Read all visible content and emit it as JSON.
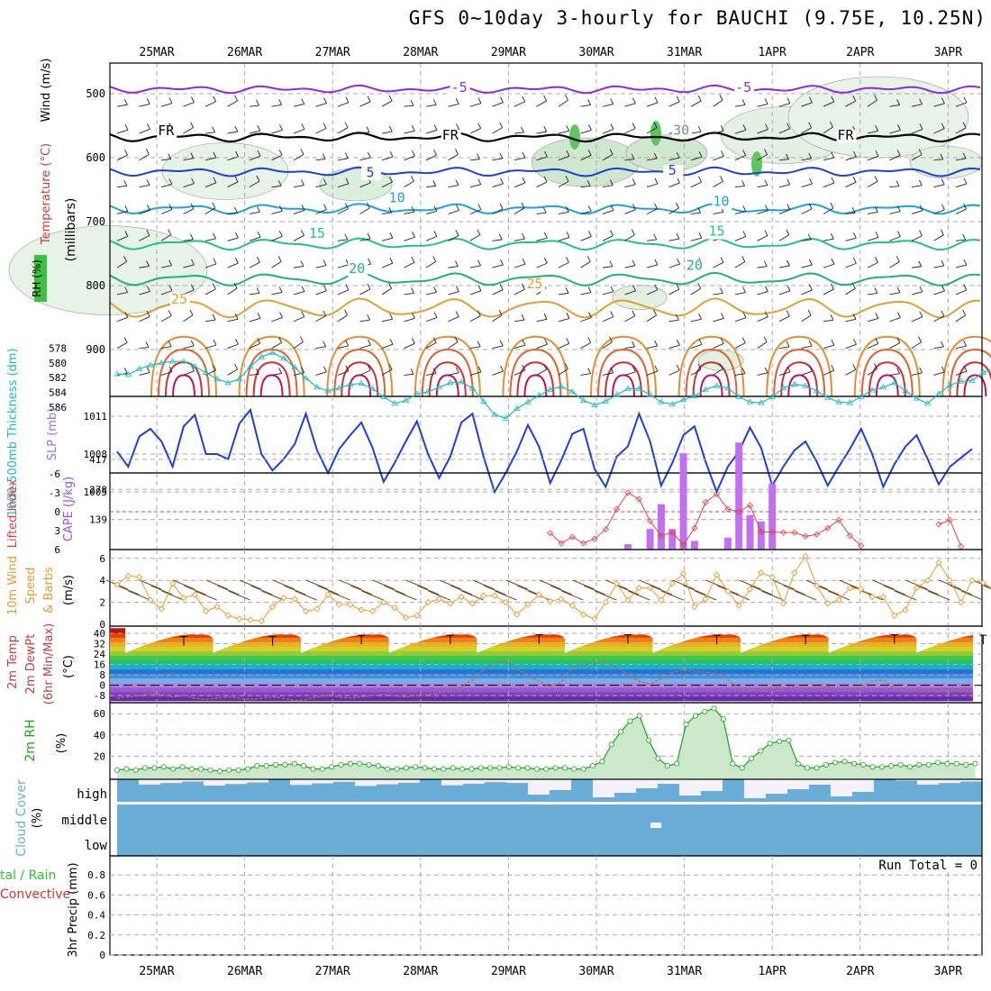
{
  "title": "GFS 0~10day 3-hourly for BAUCHI (9.75E, 10.25N)",
  "dates": [
    "25MAR",
    "26MAR",
    "27MAR",
    "28MAR",
    "29MAR",
    "30MAR",
    "31MAR",
    "1APR",
    "2APR",
    "3APR"
  ],
  "colors": {
    "slp": "#1f3fd0",
    "thickness": "#20b8c0",
    "cape": "#c070f0",
    "lifted_index": "#e04040",
    "wind10": "#e89a30",
    "windbarb": "#7a4a20",
    "dewpoint": "#b07050",
    "rh2m": "#20a020",
    "cloud": "#6aaed8",
    "temp_line": "#000000"
  },
  "panels": {
    "upper": {
      "label_rh": "RH (%)",
      "label_temp": "Temperature (°C)",
      "label_wind": "Wind (m/s)",
      "label_mb": "(millibars)",
      "yticks": [
        "500",
        "600",
        "700",
        "800",
        "900"
      ],
      "isotherm_labels": [
        {
          "text": "-5",
          "color": "#8a2be2",
          "p": 497,
          "t": 3.85
        },
        {
          "text": "-5",
          "color": "#8a2be2",
          "p": 497,
          "t": 7.05
        },
        {
          "text": "FR",
          "color": "#000000",
          "p": 565,
          "t": 0.55
        },
        {
          "text": "FR",
          "color": "#000000",
          "p": 572,
          "t": 3.75
        },
        {
          "text": "FR",
          "color": "#000000",
          "p": 572,
          "t": 8.2
        },
        {
          "text": "30",
          "color": "#888888",
          "p": 564,
          "t": 6.35
        },
        {
          "text": "5",
          "color": "#1f3fd0",
          "p": 630,
          "t": 2.85
        },
        {
          "text": "5",
          "color": "#1f3fd0",
          "p": 627,
          "t": 6.25
        },
        {
          "text": "10",
          "color": "#20a0e0",
          "p": 670,
          "t": 3.15
        },
        {
          "text": "10",
          "color": "#20a0e0",
          "p": 675,
          "t": 6.8
        },
        {
          "text": "15",
          "color": "#20c090",
          "p": 725,
          "t": 2.25
        },
        {
          "text": "15",
          "color": "#20c090",
          "p": 722,
          "t": 6.75
        },
        {
          "text": "20",
          "color": "#20b080",
          "p": 780,
          "t": 2.7
        },
        {
          "text": "20",
          "color": "#20b080",
          "p": 775,
          "t": 6.5
        },
        {
          "text": "25",
          "color": "#e0a030",
          "p": 828,
          "t": 0.7
        },
        {
          "text": "25",
          "color": "#e0a030",
          "p": 804,
          "t": 4.7
        }
      ]
    },
    "slp": {
      "label_thick": "1000-500mb Thickness (dm)",
      "label_slp": "SLP (mb)",
      "yticks_thick": [
        "586",
        "584",
        "582",
        "580",
        "578"
      ],
      "yticks_slp": [
        "1011",
        "1008",
        "1005"
      ]
    },
    "cape": {
      "label_li": "Lifted Index",
      "label_cape": "CAPE (J/kg)",
      "yticks_li": [
        "-6",
        "-3",
        "0",
        "3",
        "6"
      ],
      "yticks_cape": [
        "417",
        "278",
        "139"
      ]
    },
    "wind10": {
      "label": "10m Wind Speed & Barbs",
      "unit": "(m/s)",
      "yticks": [
        "6",
        "4",
        "2",
        "0"
      ]
    },
    "temp2m": {
      "label1": "2m Temp",
      "label2": "2m DewPt",
      "label3": "(6hr Min/Max)",
      "unit": "(°C)",
      "yticks": [
        "40",
        "32",
        "24",
        "16",
        "8",
        "0",
        "-8"
      ]
    },
    "rh2m": {
      "label": "2m RH",
      "unit": "(%)",
      "yticks": [
        "60",
        "40",
        "20"
      ]
    },
    "cloud": {
      "label": "Cloud Cover",
      "unit": "(%)",
      "levels": [
        "high",
        "middle",
        "low"
      ]
    },
    "precip": {
      "label_total": "tal / Rain",
      "label_conv": "Convective",
      "label_axis": "3hr Precip (mm)",
      "run_total": "Run Total = 0",
      "yticks": [
        "0.8",
        "0.6",
        "0.4",
        "0.2",
        "0"
      ]
    }
  },
  "chart_data": {
    "type": "line",
    "x_unit": "days after 24MAR 12Z (3-hourly steps)",
    "t_start": 0,
    "t_end": 9.75,
    "slp": [
      1008.2,
      1007,
      1009.4,
      1010,
      1009,
      1007,
      1010.2,
      1011.1,
      1008,
      1008,
      1007.6,
      1010.4,
      1011.5,
      1008,
      1006.7,
      1007.6,
      1008.8,
      1011.2,
      1008.3,
      1006.5,
      1008.4,
      1009.5,
      1010.5,
      1008.5,
      1005.8,
      1007.3,
      1009,
      1010.6,
      1008,
      1006.1,
      1007.8,
      1010.5,
      1011.2,
      1007.8,
      1005,
      1006.5,
      1008.2,
      1010.3,
      1008.6,
      1005.7,
      1007.5,
      1009.6,
      1010,
      1006.8,
      1005.4,
      1007.8,
      1008.6,
      1011.2,
      1009,
      1005.5,
      1007.3,
      1009.5,
      1010.2,
      1007.4,
      1005,
      1007,
      1008.2,
      1010.1,
      1008.5,
      1005.5,
      1007,
      1008.3,
      1009,
      1007.4,
      1005.5,
      1007,
      1008.4,
      1010,
      1008,
      1005.4,
      1007.2,
      1008.6,
      1009.5,
      1007.6,
      1005.6,
      1007,
      1007.7,
      1008.4
    ],
    "thickness": [
      581.5,
      581.6,
      580.8,
      580.3,
      580,
      579.8,
      579.8,
      580.5,
      581.3,
      582.2,
      582.7,
      582.2,
      580.5,
      579.2,
      578.6,
      579.4,
      580.6,
      582.1,
      583.3,
      583.8,
      583.4,
      582.9,
      582.8,
      583.5,
      584.6,
      585.5,
      585.1,
      584.2,
      583.9,
      583.3,
      582.7,
      582.6,
      583.4,
      585.2,
      587,
      587.5,
      586.2,
      585.3,
      584.4,
      583.6,
      583.2,
      583.9,
      585.1,
      585.7,
      585.2,
      584.3,
      583.5,
      583.5,
      584.3,
      585.3,
      585.6,
      585,
      584.5,
      583.6,
      583.1,
      583.4,
      584.6,
      585.3,
      585.4,
      584.6,
      583.4,
      582.9,
      583.1,
      583.8,
      584.7,
      585.3,
      585.4,
      584.6,
      583.7,
      583.3,
      582.7,
      583.8,
      584.8,
      585.5,
      584.2,
      583,
      582.5,
      582.4,
      581.3,
      580.8,
      580.4
    ],
    "cape_bars": [
      [
        5.75,
        25
      ],
      [
        6.0,
        95
      ],
      [
        6.125,
        210
      ],
      [
        6.25,
        95
      ],
      [
        6.375,
        445
      ],
      [
        6.5,
        40
      ],
      [
        6.75,
        2
      ],
      [
        6.875,
        55
      ],
      [
        7.0,
        495
      ],
      [
        7.125,
        160
      ],
      [
        7.25,
        130
      ],
      [
        7.375,
        305
      ]
    ],
    "lifted_index": [
      [
        4.875,
        3.4
      ],
      [
        5.0,
        5
      ],
      [
        5.125,
        4
      ],
      [
        5.25,
        5
      ],
      [
        5.375,
        4.3
      ],
      [
        5.5,
        2.8
      ],
      [
        5.625,
        -0.4
      ],
      [
        5.75,
        -3
      ],
      [
        5.875,
        -2
      ],
      [
        6.0,
        1.5
      ],
      [
        6.125,
        3.8
      ],
      [
        6.25,
        3.3
      ],
      [
        6.375,
        5.2
      ],
      [
        6.5,
        2.6
      ],
      [
        6.625,
        -1.5
      ],
      [
        6.75,
        -2.8
      ],
      [
        6.875,
        -0.4
      ],
      [
        7.0,
        0
      ],
      [
        7.125,
        -1
      ],
      [
        7.25,
        3.2
      ],
      [
        7.375,
        3.2
      ],
      [
        7.5,
        3.3
      ],
      [
        7.625,
        3.3
      ],
      [
        7.75,
        3.9
      ],
      [
        7.875,
        3.6
      ],
      [
        8.0,
        2.6
      ],
      [
        8.125,
        1.3
      ],
      [
        8.25,
        3.8
      ],
      [
        8.375,
        5.4
      ],
      [
        9.25,
        2
      ],
      [
        9.375,
        1.3
      ],
      [
        9.5,
        5.5
      ]
    ],
    "wind10": [
      3.6,
      4.4,
      4.3,
      2.2,
      1.4,
      3.7,
      2.4,
      2.7,
      1.2,
      1.6,
      0.8,
      0.5,
      0.4,
      0.3,
      1.6,
      2.4,
      2.3,
      1.2,
      1.4,
      2.7,
      1.8,
      1.8,
      1.3,
      1.2,
      2,
      1.5,
      0.6,
      0.8,
      2,
      2.3,
      1.9,
      2.5,
      1.9,
      2.6,
      2.6,
      2,
      0.9,
      1.8,
      2.7,
      2.1,
      2.3,
      1.7,
      0.9,
      0.5,
      2,
      3.7,
      2.2,
      3.3,
      3.3,
      2.2,
      3.7,
      4.6,
      1.6,
      2.3,
      4.5,
      3,
      1.7,
      3.2,
      4.7,
      4.3,
      1.9,
      4.7,
      6.2,
      3.5,
      1.9,
      2.2,
      3.3,
      3.2,
      2.5,
      2.5,
      0.8,
      1.3,
      3.3,
      4,
      5.6,
      4,
      2,
      4,
      3.8,
      3.1,
      0.5
    ],
    "temp2m_max": [
      [
        0.75,
        37.5
      ],
      [
        1.75,
        37.5
      ],
      [
        2.75,
        38.5
      ],
      [
        3.75,
        38.5
      ],
      [
        4.75,
        39
      ],
      [
        5.75,
        39
      ],
      [
        6.75,
        38.5
      ],
      [
        7.75,
        38.5
      ],
      [
        8.75,
        39
      ],
      [
        9.75,
        38.5
      ]
    ],
    "dewpoint": [
      -10,
      -9,
      -8,
      -6,
      -7,
      -9,
      -8,
      -10,
      -11,
      -10,
      -9,
      -10,
      -11,
      -10,
      -9,
      -10,
      -12,
      -11,
      -9,
      -8,
      -9,
      -10,
      -9,
      -8,
      -7,
      -8,
      -9,
      -8,
      -7,
      -6,
      -5,
      -1,
      4,
      12,
      17,
      18,
      13,
      8,
      3,
      -1,
      2,
      14,
      16,
      17,
      18,
      14,
      8,
      3,
      1,
      5,
      10,
      12,
      11,
      10,
      9,
      4,
      -2,
      -4,
      -3,
      -2,
      -2,
      -1,
      -2,
      -2,
      -1,
      -3,
      -4,
      -2,
      3,
      4,
      -2,
      -4,
      -4,
      -5,
      -5,
      -4,
      -4,
      -5
    ],
    "rh2m": [
      7,
      8,
      7,
      9,
      9,
      10,
      8,
      10,
      8,
      8,
      7,
      6,
      7,
      7,
      8,
      11,
      11,
      12,
      12,
      13,
      11,
      8,
      8,
      10,
      12,
      13,
      13,
      12,
      11,
      8,
      8,
      9,
      10,
      9,
      8,
      8,
      9,
      8,
      8,
      9,
      9,
      9,
      10,
      9,
      9,
      8,
      8,
      9,
      9,
      8,
      8,
      11,
      15,
      31,
      43,
      53,
      58,
      35,
      18,
      11,
      13,
      50,
      58,
      62,
      65,
      55,
      13,
      9,
      18,
      25,
      32,
      34,
      35,
      13,
      9,
      9,
      12,
      14,
      15,
      13,
      12,
      10,
      10,
      11,
      12,
      10,
      12,
      12,
      14,
      13,
      13,
      12,
      13
    ]
  }
}
